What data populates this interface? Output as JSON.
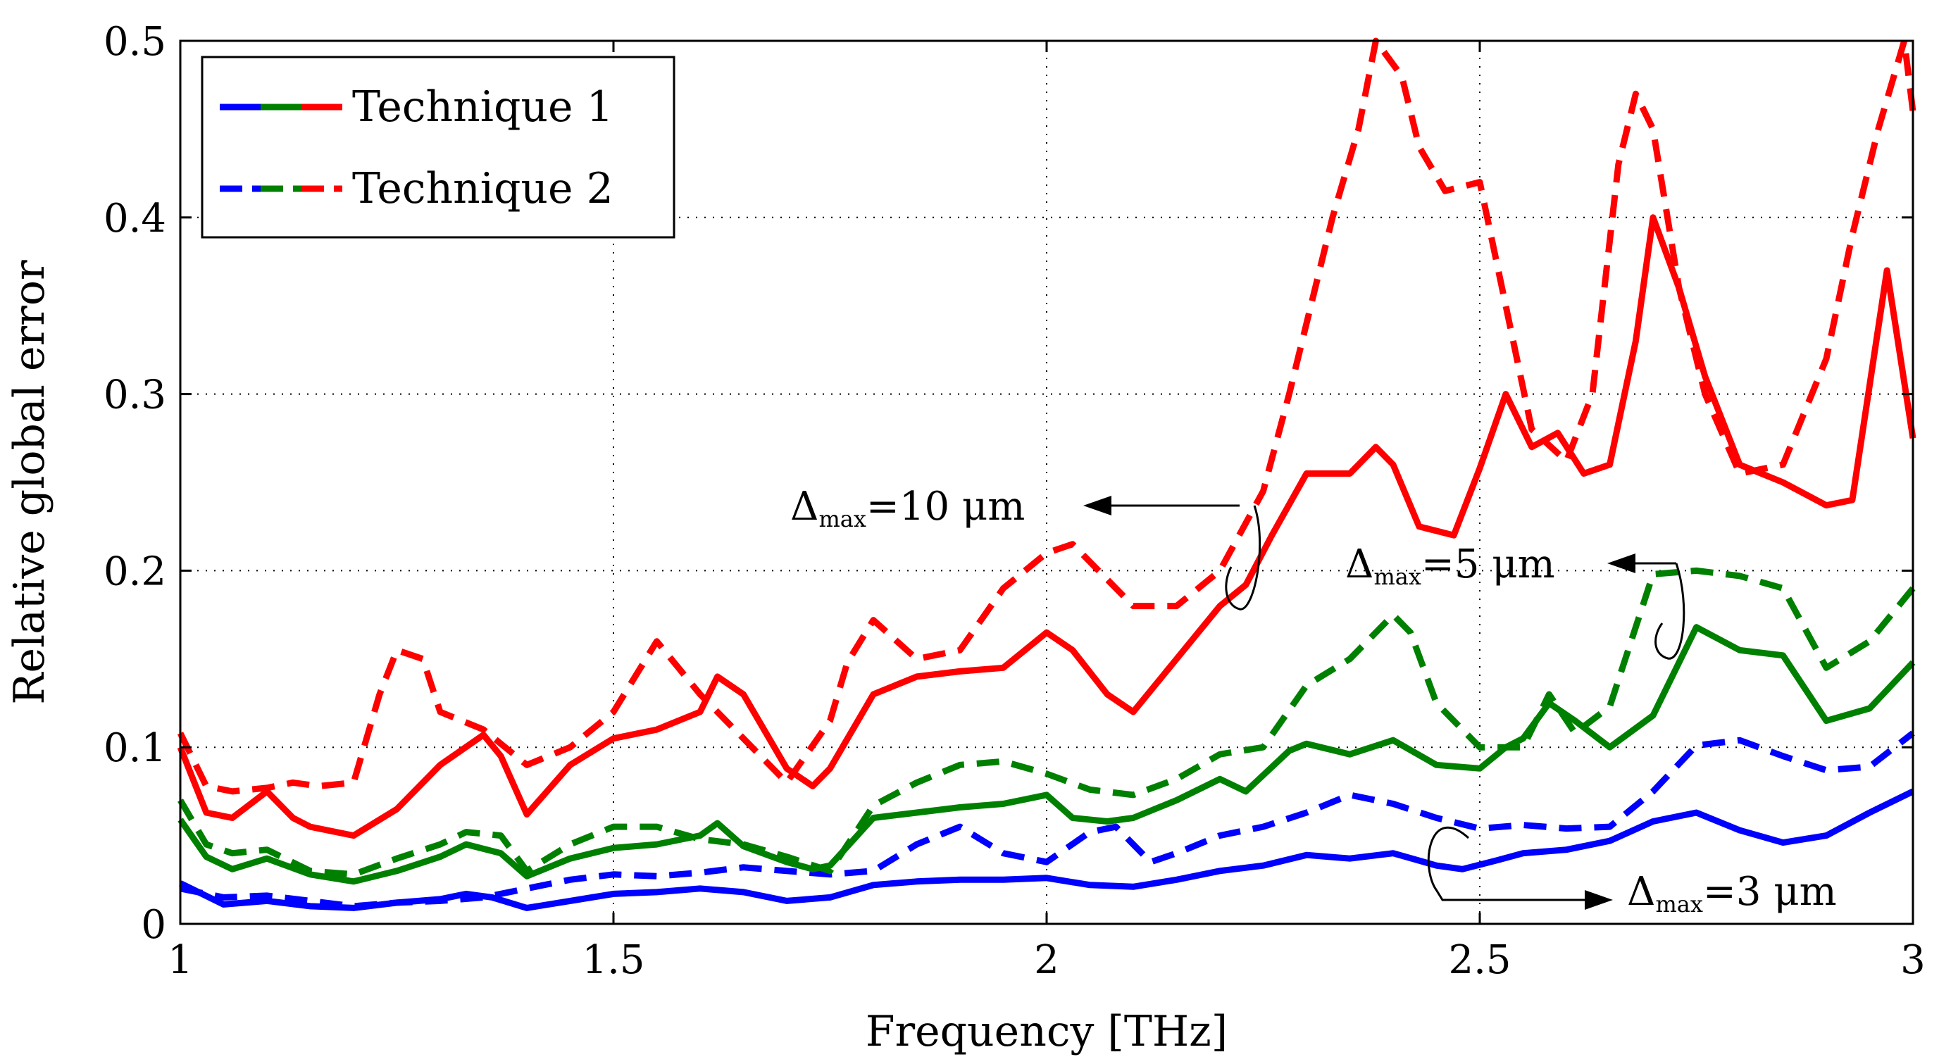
{
  "chart_data": {
    "type": "line",
    "title": "",
    "xlabel": "Frequency [THz]",
    "ylabel": "Relative global error",
    "xlim": [
      1,
      3
    ],
    "ylim": [
      0,
      0.5
    ],
    "xticks": [
      1,
      1.5,
      2,
      2.5,
      3
    ],
    "xtick_labels": [
      "1",
      "1.5",
      "2",
      "2.5",
      "3"
    ],
    "yticks": [
      0,
      0.1,
      0.2,
      0.3,
      0.4,
      0.5
    ],
    "ytick_labels": [
      "0",
      "0.1",
      "0.2",
      "0.3",
      "0.4",
      "0.5"
    ],
    "grid": true,
    "legend": {
      "placement": "top-left",
      "entries": [
        {
          "label": "Technique 1",
          "style": "solid",
          "colors": [
            "#0000ff",
            "#008000",
            "#ff0000"
          ]
        },
        {
          "label": "Technique 2",
          "style": "dashed",
          "colors": [
            "#0000ff",
            "#008000",
            "#ff0000"
          ]
        }
      ]
    },
    "annotations": [
      {
        "symbol": "Δ",
        "sub": "max",
        "value": "=10 μm",
        "target_series": "dmax10"
      },
      {
        "symbol": "Δ",
        "sub": "max",
        "value": "=5 μm",
        "target_series": "dmax5"
      },
      {
        "symbol": "Δ",
        "sub": "max",
        "value": "=3 μm",
        "target_series": "dmax3"
      }
    ],
    "series": [
      {
        "name": "Technique 1, Δmax=3 μm",
        "group": "dmax3",
        "technique": "Technique 1",
        "color": "#0000ff",
        "style": "solid",
        "x": [
          1.0,
          1.05,
          1.1,
          1.15,
          1.2,
          1.25,
          1.3,
          1.33,
          1.36,
          1.4,
          1.45,
          1.5,
          1.55,
          1.6,
          1.65,
          1.7,
          1.75,
          1.8,
          1.85,
          1.9,
          1.95,
          2.0,
          2.05,
          2.1,
          2.15,
          2.2,
          2.25,
          2.3,
          2.35,
          2.4,
          2.45,
          2.48,
          2.52,
          2.55,
          2.6,
          2.65,
          2.7,
          2.75,
          2.8,
          2.85,
          2.9,
          2.95,
          3.0
        ],
        "y": [
          0.023,
          0.011,
          0.013,
          0.01,
          0.009,
          0.012,
          0.014,
          0.017,
          0.015,
          0.009,
          0.013,
          0.017,
          0.018,
          0.02,
          0.018,
          0.013,
          0.015,
          0.022,
          0.024,
          0.025,
          0.025,
          0.026,
          0.022,
          0.021,
          0.025,
          0.03,
          0.033,
          0.039,
          0.037,
          0.04,
          0.033,
          0.031,
          0.036,
          0.04,
          0.042,
          0.047,
          0.058,
          0.063,
          0.053,
          0.046,
          0.05,
          0.063,
          0.075
        ]
      },
      {
        "name": "Technique 2, Δmax=3 μm",
        "group": "dmax3",
        "technique": "Technique 2",
        "color": "#0000ff",
        "style": "dashed",
        "x": [
          1.0,
          1.05,
          1.1,
          1.15,
          1.2,
          1.25,
          1.3,
          1.35,
          1.4,
          1.45,
          1.5,
          1.55,
          1.6,
          1.65,
          1.7,
          1.75,
          1.8,
          1.85,
          1.9,
          1.95,
          2.0,
          2.05,
          2.08,
          2.12,
          2.15,
          2.2,
          2.25,
          2.3,
          2.35,
          2.4,
          2.45,
          2.5,
          2.55,
          2.6,
          2.65,
          2.7,
          2.75,
          2.8,
          2.85,
          2.9,
          2.95,
          3.0
        ],
        "y": [
          0.02,
          0.015,
          0.016,
          0.013,
          0.01,
          0.012,
          0.013,
          0.015,
          0.02,
          0.025,
          0.028,
          0.027,
          0.029,
          0.032,
          0.03,
          0.028,
          0.03,
          0.045,
          0.055,
          0.04,
          0.035,
          0.052,
          0.055,
          0.035,
          0.04,
          0.05,
          0.055,
          0.063,
          0.073,
          0.068,
          0.06,
          0.054,
          0.056,
          0.054,
          0.055,
          0.075,
          0.101,
          0.104,
          0.095,
          0.087,
          0.089,
          0.108
        ]
      },
      {
        "name": "Technique 1, Δmax=5 μm",
        "group": "dmax5",
        "technique": "Technique 1",
        "color": "#008000",
        "style": "solid",
        "x": [
          1.0,
          1.03,
          1.06,
          1.1,
          1.15,
          1.2,
          1.25,
          1.3,
          1.33,
          1.37,
          1.4,
          1.45,
          1.5,
          1.55,
          1.6,
          1.62,
          1.65,
          1.7,
          1.73,
          1.75,
          1.8,
          1.85,
          1.9,
          1.95,
          2.0,
          2.03,
          2.07,
          2.1,
          2.15,
          2.2,
          2.23,
          2.28,
          2.3,
          2.35,
          2.4,
          2.45,
          2.5,
          2.53,
          2.55,
          2.58,
          2.61,
          2.65,
          2.7,
          2.75,
          2.8,
          2.85,
          2.9,
          2.95,
          3.0
        ],
        "y": [
          0.059,
          0.038,
          0.031,
          0.037,
          0.028,
          0.024,
          0.03,
          0.038,
          0.045,
          0.04,
          0.027,
          0.037,
          0.043,
          0.045,
          0.05,
          0.057,
          0.044,
          0.035,
          0.031,
          0.033,
          0.06,
          0.063,
          0.066,
          0.068,
          0.073,
          0.06,
          0.058,
          0.06,
          0.07,
          0.082,
          0.075,
          0.098,
          0.102,
          0.096,
          0.104,
          0.09,
          0.088,
          0.1,
          0.105,
          0.125,
          0.115,
          0.1,
          0.118,
          0.168,
          0.155,
          0.152,
          0.115,
          0.122,
          0.148
        ]
      },
      {
        "name": "Technique 2, Δmax=5 μm",
        "group": "dmax5",
        "technique": "Technique 2",
        "color": "#008000",
        "style": "dashed",
        "x": [
          1.0,
          1.03,
          1.06,
          1.1,
          1.15,
          1.2,
          1.25,
          1.3,
          1.33,
          1.37,
          1.4,
          1.45,
          1.5,
          1.55,
          1.6,
          1.65,
          1.7,
          1.75,
          1.8,
          1.85,
          1.9,
          1.95,
          2.0,
          2.05,
          2.1,
          2.15,
          2.2,
          2.25,
          2.3,
          2.35,
          2.4,
          2.42,
          2.45,
          2.5,
          2.55,
          2.58,
          2.61,
          2.65,
          2.7,
          2.75,
          2.8,
          2.85,
          2.9,
          2.95,
          3.0
        ],
        "y": [
          0.07,
          0.045,
          0.04,
          0.042,
          0.03,
          0.028,
          0.037,
          0.045,
          0.052,
          0.05,
          0.03,
          0.045,
          0.055,
          0.055,
          0.048,
          0.045,
          0.038,
          0.03,
          0.067,
          0.08,
          0.09,
          0.092,
          0.085,
          0.076,
          0.073,
          0.082,
          0.096,
          0.1,
          0.135,
          0.15,
          0.175,
          0.165,
          0.125,
          0.1,
          0.1,
          0.13,
          0.108,
          0.123,
          0.198,
          0.2,
          0.197,
          0.19,
          0.145,
          0.16,
          0.19
        ]
      },
      {
        "name": "Technique 1, Δmax=10 μm",
        "group": "dmax10",
        "technique": "Technique 1",
        "color": "#ff0000",
        "style": "solid",
        "x": [
          1.0,
          1.03,
          1.06,
          1.1,
          1.13,
          1.15,
          1.2,
          1.25,
          1.3,
          1.35,
          1.37,
          1.4,
          1.45,
          1.5,
          1.55,
          1.6,
          1.62,
          1.65,
          1.7,
          1.73,
          1.75,
          1.8,
          1.85,
          1.9,
          1.95,
          2.0,
          2.03,
          2.07,
          2.1,
          2.15,
          2.2,
          2.23,
          2.26,
          2.3,
          2.35,
          2.38,
          2.4,
          2.43,
          2.47,
          2.5,
          2.53,
          2.56,
          2.59,
          2.62,
          2.65,
          2.68,
          2.7,
          2.73,
          2.76,
          2.8,
          2.85,
          2.9,
          2.93,
          2.97,
          3.0
        ],
        "y": [
          0.1,
          0.063,
          0.06,
          0.075,
          0.06,
          0.055,
          0.05,
          0.065,
          0.09,
          0.107,
          0.095,
          0.062,
          0.09,
          0.105,
          0.11,
          0.12,
          0.14,
          0.13,
          0.088,
          0.078,
          0.088,
          0.13,
          0.14,
          0.143,
          0.145,
          0.165,
          0.155,
          0.13,
          0.12,
          0.15,
          0.18,
          0.192,
          0.22,
          0.255,
          0.255,
          0.27,
          0.26,
          0.225,
          0.22,
          0.258,
          0.3,
          0.27,
          0.278,
          0.255,
          0.26,
          0.33,
          0.4,
          0.36,
          0.31,
          0.26,
          0.25,
          0.237,
          0.24,
          0.37,
          0.275
        ]
      },
      {
        "name": "Technique 2, Δmax=10 μm",
        "group": "dmax10",
        "technique": "Technique 2",
        "color": "#ff0000",
        "style": "dashed",
        "x": [
          1.0,
          1.03,
          1.06,
          1.1,
          1.13,
          1.16,
          1.2,
          1.23,
          1.25,
          1.28,
          1.3,
          1.35,
          1.4,
          1.45,
          1.5,
          1.55,
          1.6,
          1.65,
          1.7,
          1.75,
          1.77,
          1.8,
          1.85,
          1.9,
          1.95,
          2.0,
          2.03,
          2.06,
          2.1,
          2.15,
          2.2,
          2.25,
          2.28,
          2.3,
          2.33,
          2.36,
          2.38,
          2.41,
          2.43,
          2.46,
          2.5,
          2.53,
          2.56,
          2.6,
          2.63,
          2.66,
          2.68,
          2.7,
          2.73,
          2.76,
          2.8,
          2.85,
          2.9,
          2.93,
          2.96,
          2.99,
          3.0
        ],
        "y": [
          0.108,
          0.078,
          0.075,
          0.077,
          0.08,
          0.078,
          0.08,
          0.13,
          0.155,
          0.15,
          0.12,
          0.11,
          0.09,
          0.1,
          0.12,
          0.16,
          0.13,
          0.105,
          0.08,
          0.115,
          0.148,
          0.172,
          0.15,
          0.155,
          0.19,
          0.21,
          0.215,
          0.2,
          0.18,
          0.18,
          0.2,
          0.245,
          0.3,
          0.34,
          0.4,
          0.45,
          0.5,
          0.48,
          0.44,
          0.415,
          0.42,
          0.35,
          0.28,
          0.262,
          0.3,
          0.43,
          0.47,
          0.45,
          0.36,
          0.3,
          0.255,
          0.26,
          0.32,
          0.39,
          0.45,
          0.5,
          0.46
        ]
      }
    ]
  }
}
